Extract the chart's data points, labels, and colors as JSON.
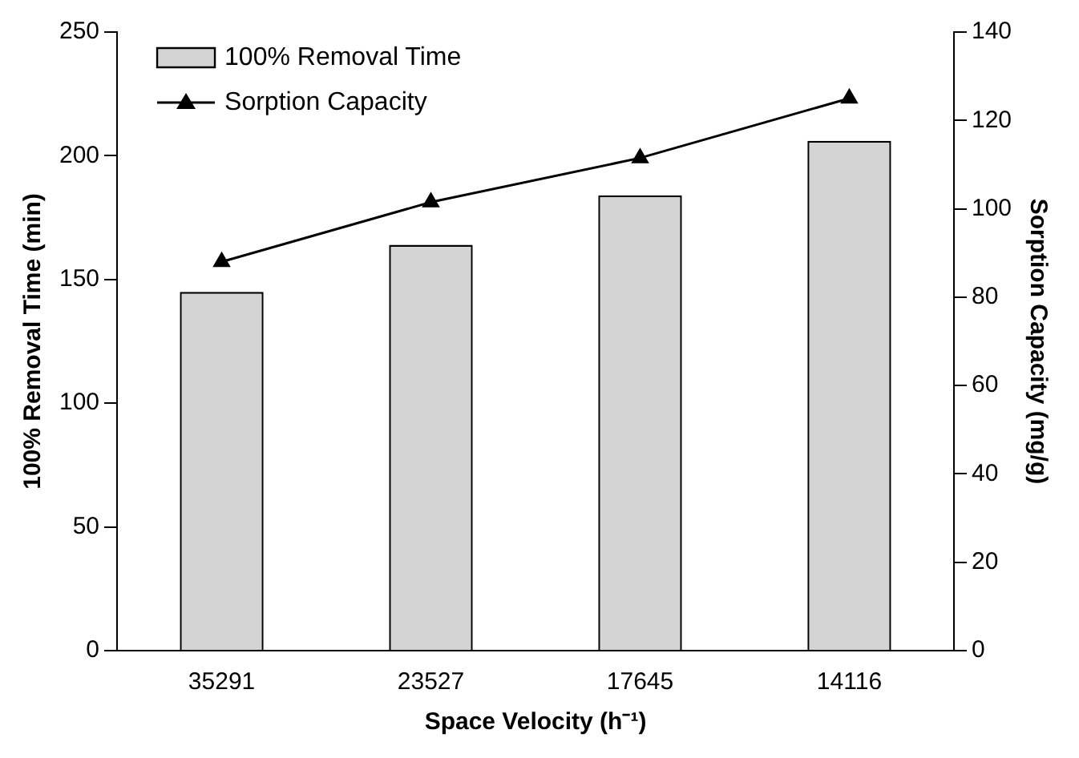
{
  "chart_data": {
    "type": "bar",
    "xlabel": "Space Velocity (h⁻¹)",
    "ylabel": "100% Removal Time (min)",
    "y2label": "Sorption Capacity (mg/g)",
    "categories": [
      "35291",
      "23527",
      "17645",
      "14116"
    ],
    "series": [
      {
        "name": "100% Removal Time",
        "color": "#d4d4d4",
        "values": [
          145,
          164,
          184,
          206
        ]
      },
      {
        "name": "Sorption Capacity",
        "type": "line",
        "axis": "y2",
        "color": "#000000",
        "marker": "triangle",
        "values": [
          88,
          101.5,
          111.5,
          125
        ]
      }
    ],
    "ylim": [
      0,
      250
    ],
    "yticks": [
      0,
      50,
      100,
      150,
      200,
      250
    ],
    "y2lim": [
      0,
      140
    ],
    "y2ticks": [
      0,
      20,
      40,
      60,
      80,
      100,
      120,
      140
    ],
    "grid": false,
    "legend": "top left"
  }
}
